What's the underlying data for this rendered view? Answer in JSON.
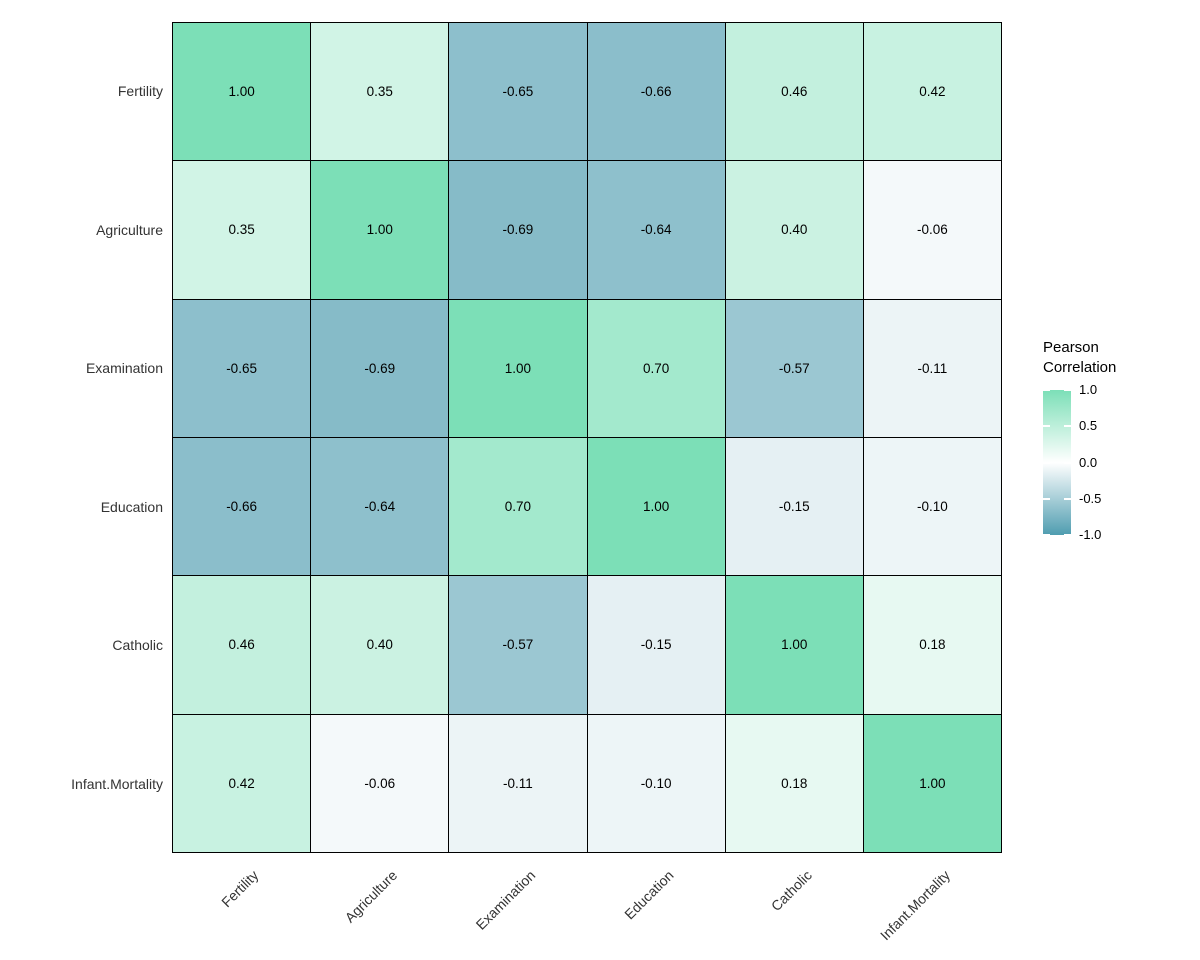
{
  "chart_data": {
    "type": "heatmap",
    "title": "",
    "variables": [
      "Fertility",
      "Agriculture",
      "Examination",
      "Education",
      "Catholic",
      "Infant.Mortality"
    ],
    "matrix": [
      [
        1.0,
        0.35,
        -0.65,
        -0.66,
        0.46,
        0.42
      ],
      [
        0.35,
        1.0,
        -0.69,
        -0.64,
        0.4,
        -0.06
      ],
      [
        -0.65,
        -0.69,
        1.0,
        0.7,
        -0.57,
        -0.11
      ],
      [
        -0.66,
        -0.64,
        0.7,
        1.0,
        -0.15,
        -0.1
      ],
      [
        0.46,
        0.4,
        -0.57,
        -0.15,
        1.0,
        0.18
      ],
      [
        0.42,
        -0.06,
        -0.11,
        -0.1,
        0.18,
        1.0
      ]
    ],
    "value_format_decimals": 2,
    "value_range": [
      -1,
      1
    ],
    "colorscale": {
      "low": "#4F9DB0",
      "mid": "#FFFFFF",
      "high": "#7CDFB7",
      "domain": [
        -1,
        0,
        1
      ]
    },
    "grid_line_color": "#000000",
    "cell_text_color": "#000000",
    "axis_text_color": "#333333",
    "background_color": "#FFFFFF",
    "legend": {
      "title_lines": [
        "Pearson",
        "Correlation"
      ],
      "position": "right",
      "ticks": [
        {
          "label": "1.0",
          "value": 1.0
        },
        {
          "label": "0.5",
          "value": 0.5
        },
        {
          "label": "0.0",
          "value": 0.0
        },
        {
          "label": "-0.5",
          "value": -0.5
        },
        {
          "label": "-1.0",
          "value": -1.0
        }
      ]
    }
  }
}
